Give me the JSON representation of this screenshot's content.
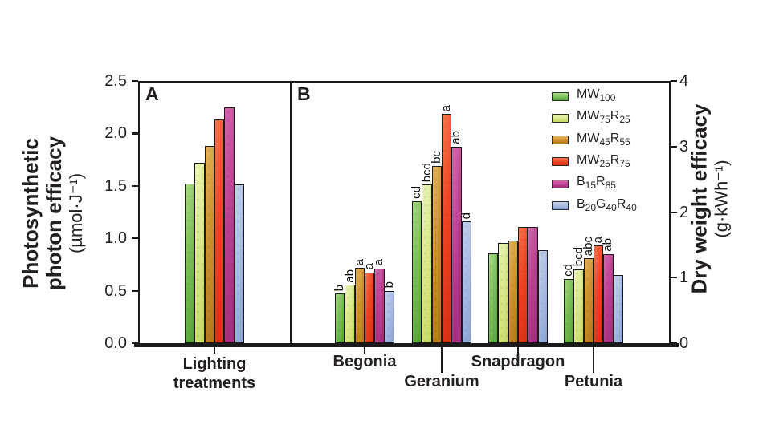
{
  "panels": {
    "a_label": "A",
    "b_label": "B"
  },
  "left_axis": {
    "title_line1": "Photosynthetic",
    "title_line2": "photon efficacy",
    "unit": "(µmol·J⁻¹)",
    "tick_labels": [
      "0.0",
      "0.5",
      "1.0",
      "1.5",
      "2.0",
      "2.5"
    ],
    "min": 0,
    "max": 2.5
  },
  "right_axis": {
    "title": "Dry weight efficacy",
    "unit": "(g·kWh⁻¹)",
    "tick_labels": [
      "0",
      "1",
      "2",
      "3",
      "4"
    ],
    "min": 0,
    "max": 4
  },
  "x_labels": {
    "panel_a_lines": [
      "Lighting",
      "treatments"
    ],
    "row1": [
      "Begonia",
      "Snapdragon"
    ],
    "row2": [
      "Geranium",
      "Petunia"
    ]
  },
  "treatments": [
    {
      "name": "MW100",
      "segments": [
        [
          "MW",
          false
        ],
        [
          "100",
          true
        ]
      ],
      "light": "#aadb84",
      "main": "#7cbf58",
      "dark": "#55a238"
    },
    {
      "name": "MW75R25",
      "segments": [
        [
          "MW",
          false
        ],
        [
          "75",
          true
        ],
        [
          "R",
          false
        ],
        [
          "25",
          true
        ]
      ],
      "light": "#ecf4b6",
      "main": "#dbe88d",
      "dark": "#c6da62"
    },
    {
      "name": "MW45R55",
      "segments": [
        [
          "MW",
          false
        ],
        [
          "45",
          true
        ],
        [
          "R",
          false
        ],
        [
          "55",
          true
        ]
      ],
      "light": "#e3b45e",
      "main": "#d0922f",
      "dark": "#b2751c"
    },
    {
      "name": "MW25R75",
      "segments": [
        [
          "MW",
          false
        ],
        [
          "25",
          true
        ],
        [
          "R",
          false
        ],
        [
          "75",
          true
        ]
      ],
      "light": "#f8764d",
      "main": "#ee4423",
      "dark": "#d62e12"
    },
    {
      "name": "B15R85",
      "segments": [
        [
          "B",
          false
        ],
        [
          "15",
          true
        ],
        [
          "R",
          false
        ],
        [
          "85",
          true
        ]
      ],
      "light": "#d268ad",
      "main": "#bc4193",
      "dark": "#a02c7c"
    },
    {
      "name": "B20G40R40",
      "segments": [
        [
          "B",
          false
        ],
        [
          "20",
          true
        ],
        [
          "G",
          false
        ],
        [
          "40",
          true
        ],
        [
          "R",
          false
        ],
        [
          "40",
          true
        ]
      ],
      "light": "#c6d2ee",
      "main": "#a9bce4",
      "dark": "#8aa3d3"
    }
  ],
  "chart_data": [
    {
      "type": "bar",
      "panel": "A",
      "title": "",
      "categories": [
        "Lighting treatments"
      ],
      "series": [
        {
          "name": "MW100",
          "values": [
            1.52
          ]
        },
        {
          "name": "MW75R25",
          "values": [
            1.72
          ]
        },
        {
          "name": "MW45R55",
          "values": [
            1.88
          ]
        },
        {
          "name": "MW25R75",
          "values": [
            2.13
          ]
        },
        {
          "name": "B15R85",
          "values": [
            2.25
          ]
        },
        {
          "name": "B20G40R40",
          "values": [
            1.51
          ]
        }
      ],
      "ylabel": "Photosynthetic photon efficacy",
      "yunit": "µmol·J⁻¹",
      "ylim": [
        0,
        2.5
      ],
      "grid": false,
      "legend_position": "none"
    },
    {
      "type": "bar",
      "panel": "B",
      "title": "",
      "categories": [
        "Begonia",
        "Geranium",
        "Snapdragon",
        "Petunia"
      ],
      "series": [
        {
          "name": "MW100",
          "values": [
            0.76,
            2.17,
            1.37,
            0.98
          ]
        },
        {
          "name": "MW75R25",
          "values": [
            0.89,
            2.42,
            1.53,
            1.13
          ]
        },
        {
          "name": "MW45R55",
          "values": [
            1.15,
            2.7,
            1.57,
            1.3
          ]
        },
        {
          "name": "MW25R75",
          "values": [
            1.08,
            3.5,
            1.77,
            1.49
          ]
        },
        {
          "name": "B15R85",
          "values": [
            1.14,
            3.0,
            1.77,
            1.36
          ]
        },
        {
          "name": "B20G40R40",
          "values": [
            0.8,
            1.86,
            1.42,
            1.04
          ]
        }
      ],
      "sig_letters": [
        [
          "b",
          "ab",
          "a",
          "a",
          "a",
          "b"
        ],
        [
          "cd",
          "bcd",
          "bc",
          "a",
          "ab",
          "d"
        ],
        [
          "",
          "",
          "",
          "",
          "",
          ""
        ],
        [
          "cd",
          "bcd",
          "abc",
          "a",
          "ab",
          ""
        ]
      ],
      "ylabel": "Dry weight efficacy",
      "yunit": "g·kWh⁻¹",
      "ylim": [
        0,
        4
      ],
      "grid": false,
      "legend_position": "top-right-inside"
    }
  ]
}
